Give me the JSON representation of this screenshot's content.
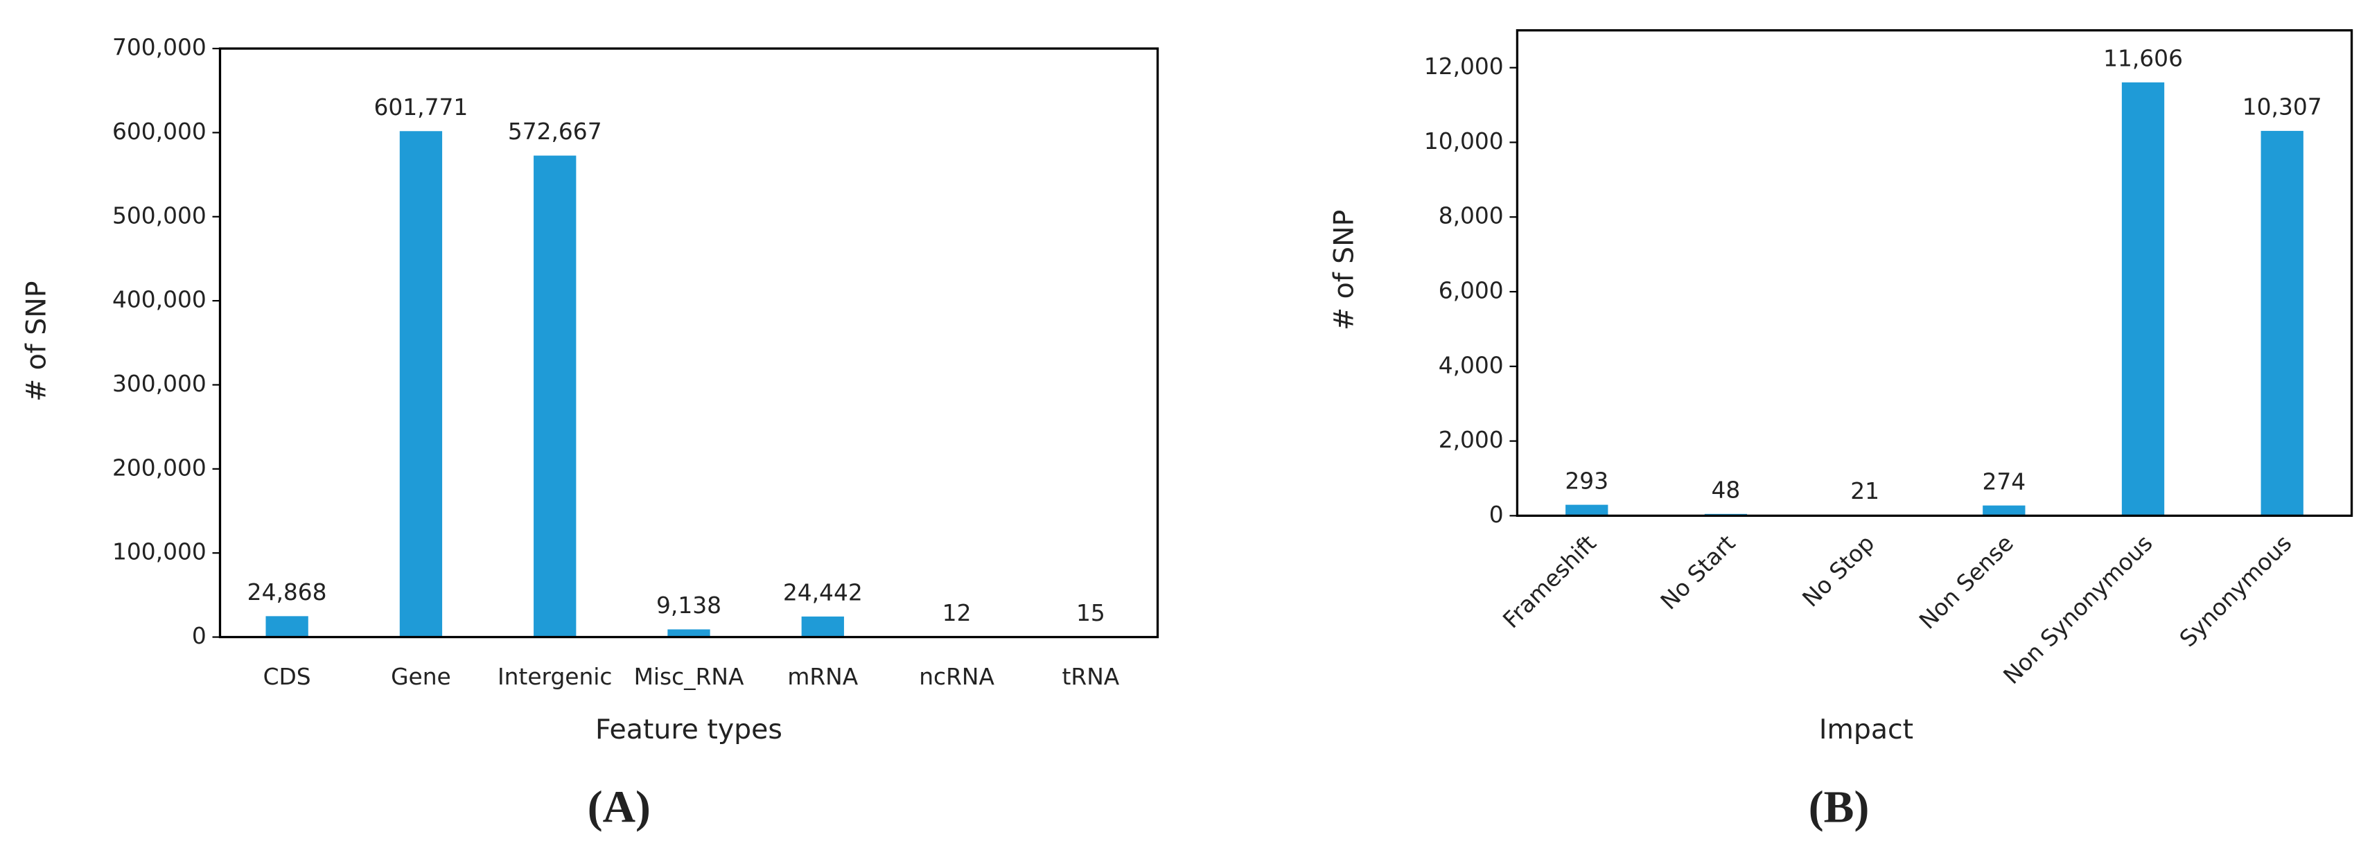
{
  "chart_data": [
    {
      "type": "bar",
      "panel_label": "(A)",
      "x_label": "Feature types",
      "y_label": "# of SNP",
      "categories": [
        "CDS",
        "Gene",
        "Intergenic",
        "Misc_RNA",
        "mRNA",
        "ncRNA",
        "tRNA"
      ],
      "values": [
        24868,
        601771,
        572667,
        9138,
        24442,
        12,
        15
      ],
      "value_labels": [
        "24,868",
        "601,771",
        "572,667",
        "9,138",
        "24,442",
        "12",
        "15"
      ],
      "color": "#1f9bd7",
      "ylim": [
        0,
        700000
      ],
      "yticks": [
        0,
        {
          "value": 100000,
          "label": "100,000"
        },
        {
          "value": 200000,
          "label": "200,000"
        },
        {
          "value": 300000,
          "label": "300,000"
        },
        {
          "value": 400000,
          "label": "400,000"
        },
        {
          "value": 500000,
          "label": "500,000"
        },
        {
          "value": 600000,
          "label": "600,000"
        },
        {
          "value": 700000,
          "label": "700,000"
        }
      ],
      "grid": false
    },
    {
      "type": "bar",
      "panel_label": "(B)",
      "x_label": "Impact",
      "y_label": "# of SNP",
      "categories": [
        "Frameshift",
        "No Start",
        "No Stop",
        "Non Sense",
        "Non Synonymous",
        "Synonymous"
      ],
      "values": [
        293,
        48,
        21,
        274,
        11606,
        10307
      ],
      "value_labels": [
        "293",
        "48",
        "21",
        "274",
        "11,606",
        "10,307"
      ],
      "color": "#1f9bd7",
      "ylim": [
        0,
        13000
      ],
      "yticks": [
        0,
        {
          "value": 2000,
          "label": "2,000"
        },
        {
          "value": 4000,
          "label": "4,000"
        },
        {
          "value": 6000,
          "label": "6,000"
        },
        {
          "value": 8000,
          "label": "8,000"
        },
        {
          "value": 10000,
          "label": "10,000"
        },
        {
          "value": 12000,
          "label": "12,000"
        }
      ],
      "grid": false
    }
  ]
}
